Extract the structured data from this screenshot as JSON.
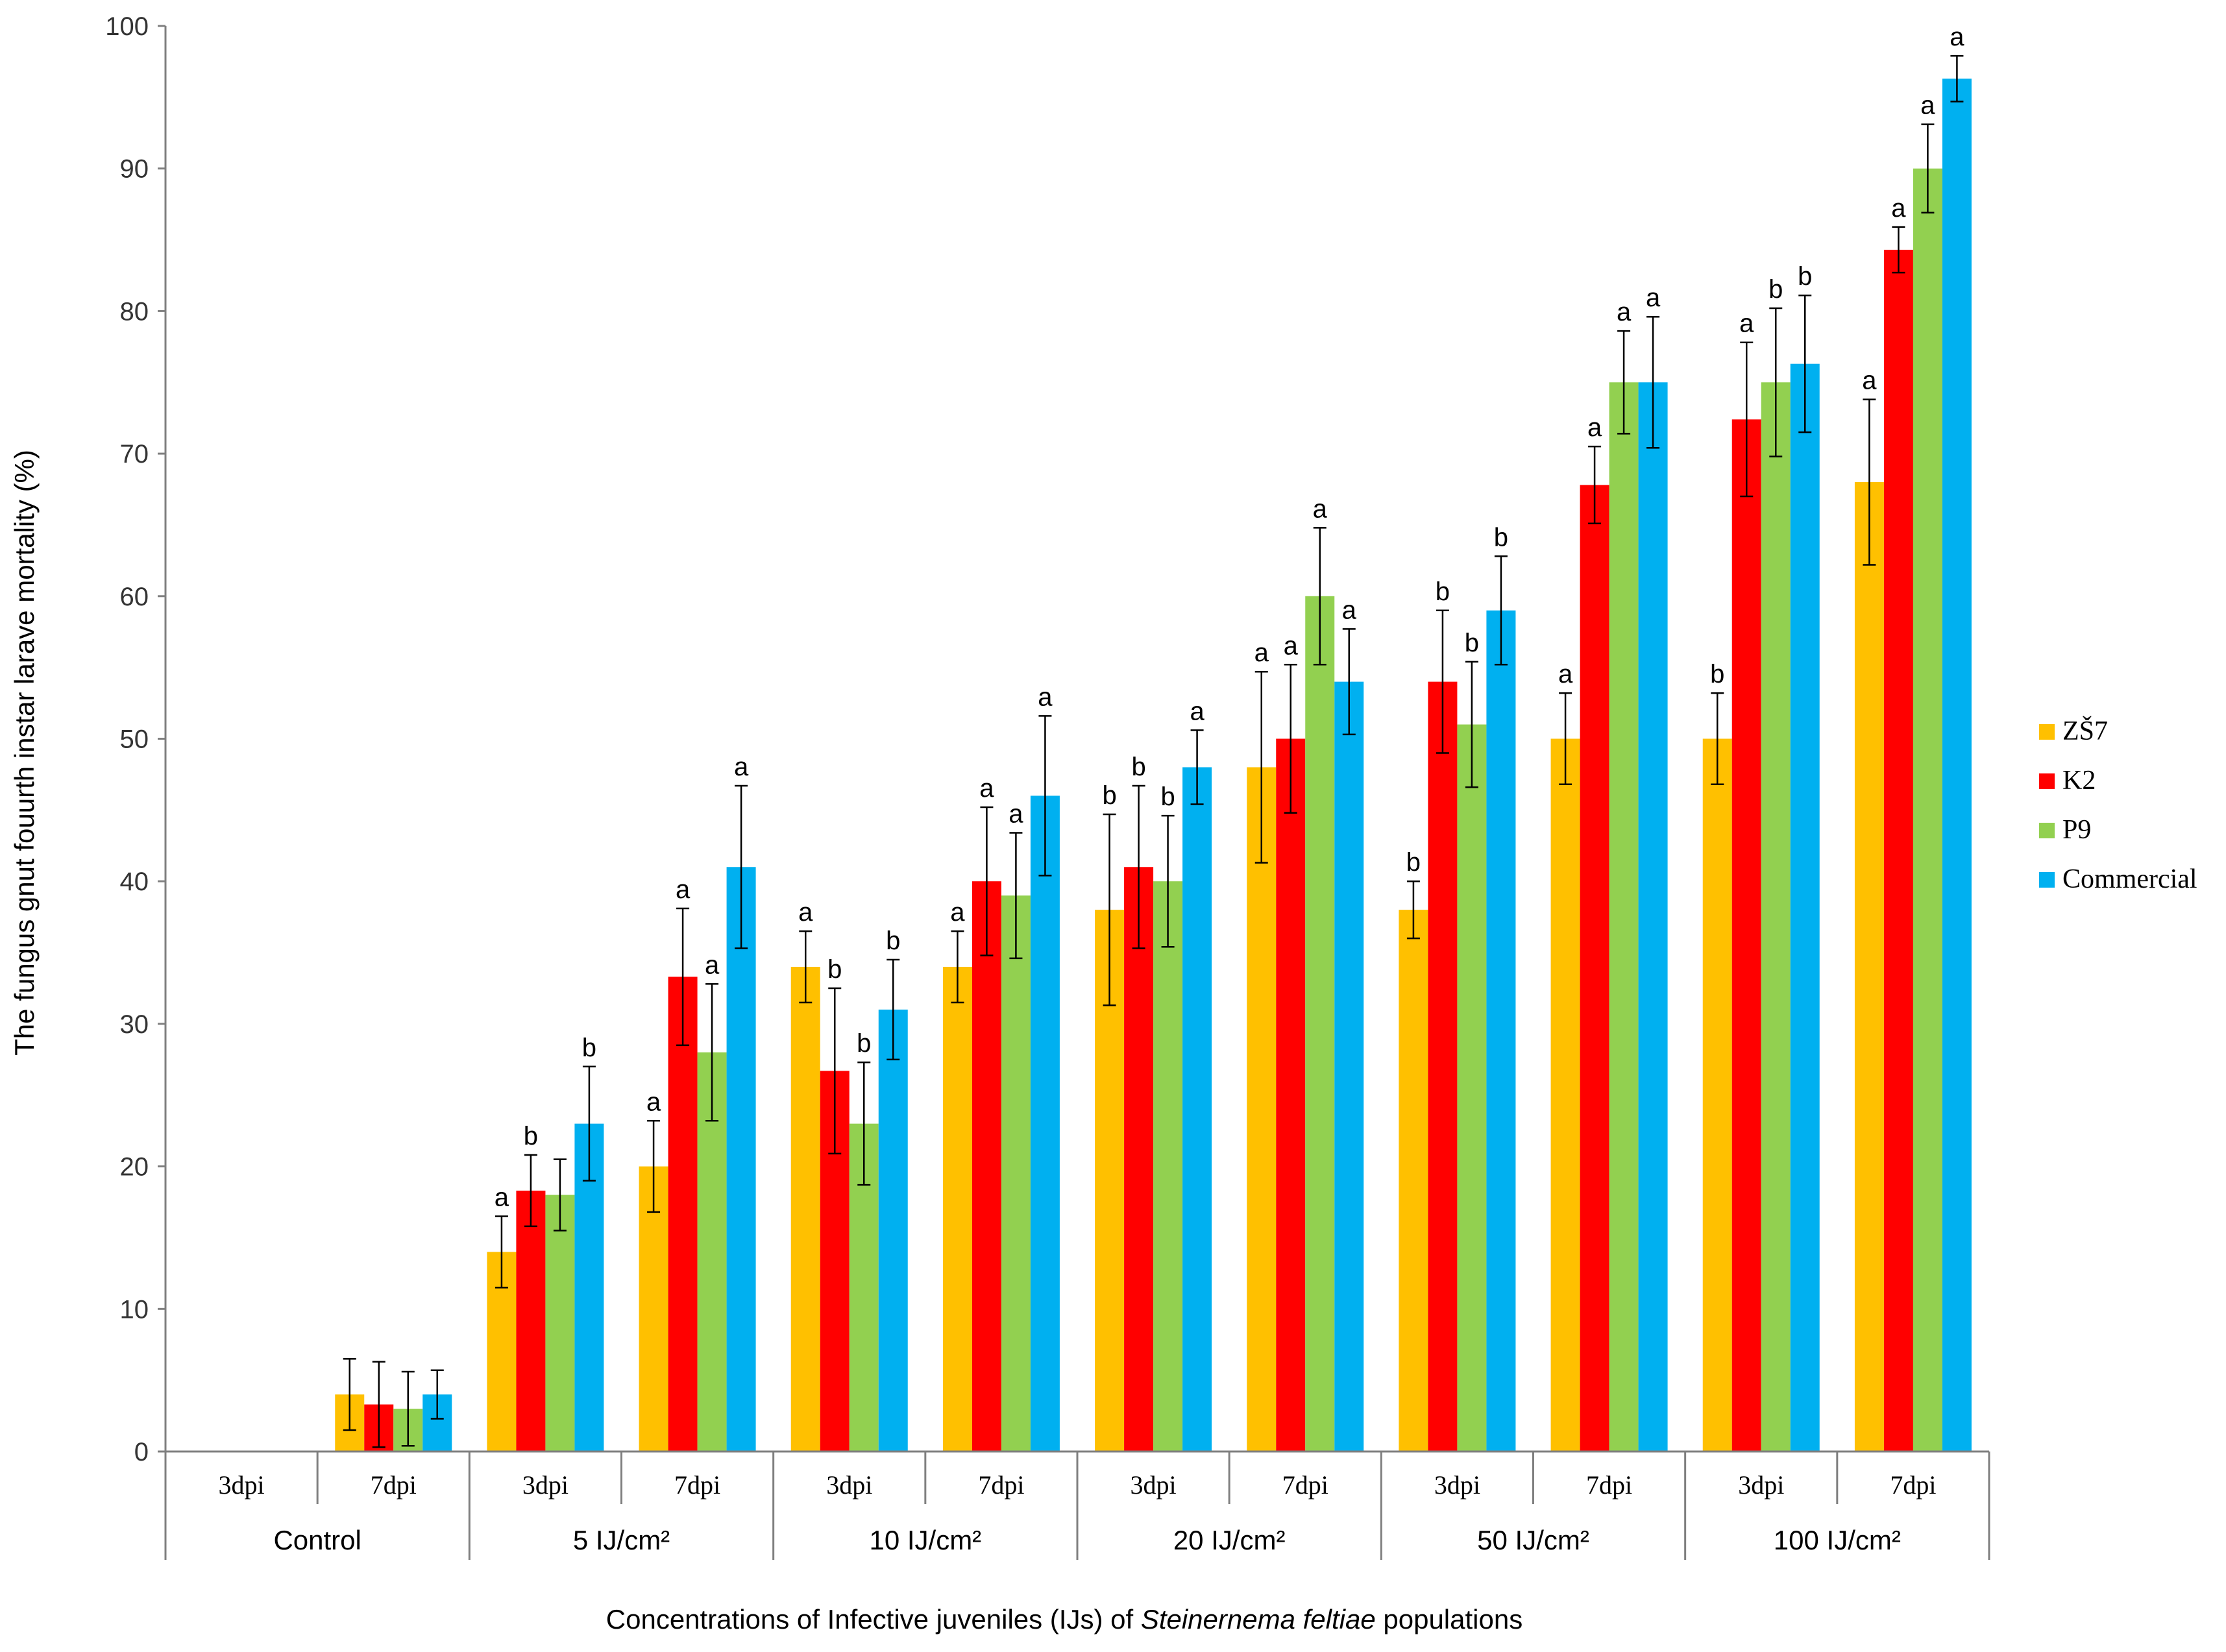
{
  "chart_data": {
    "type": "bar",
    "title": "",
    "ylabel": "The fungus gnut fouurth  instar larave mortality (%)",
    "xlabel_parts": [
      {
        "text": "Concentrations of Infective juveniles (IJs) of ",
        "italic": false
      },
      {
        "text": "Steinernema feltiae",
        "italic": true
      },
      {
        "text": " populations",
        "italic": false
      }
    ],
    "ylim": [
      0,
      100
    ],
    "yticks": [
      0,
      10,
      20,
      30,
      40,
      50,
      60,
      70,
      80,
      90,
      100
    ],
    "grid": false,
    "legend_position": "right",
    "groups": [
      {
        "label": "Control",
        "categories": [
          "3dpi",
          "7dpi"
        ]
      },
      {
        "label": "5 IJ/cm²",
        "categories": [
          "3dpi",
          "7dpi"
        ]
      },
      {
        "label": "10 IJ/cm²",
        "categories": [
          "3dpi",
          "7dpi"
        ]
      },
      {
        "label": "20 IJ/cm²",
        "categories": [
          "3dpi",
          "7dpi"
        ]
      },
      {
        "label": "50 IJ/cm²",
        "categories": [
          "3dpi",
          "7dpi"
        ]
      },
      {
        "label": "100 IJ/cm²",
        "categories": [
          "3dpi",
          "7dpi"
        ]
      }
    ],
    "categories": [
      "3dpi",
      "7dpi",
      "3dpi",
      "7dpi",
      "3dpi",
      "7dpi",
      "3dpi",
      "7dpi",
      "3dpi",
      "7dpi",
      "3dpi",
      "7dpi"
    ],
    "series": [
      {
        "name": "ZŠ7",
        "color": "#FFC000",
        "values": [
          0,
          4,
          14,
          20,
          34,
          34,
          38,
          48,
          38,
          50,
          50,
          68
        ],
        "errors": [
          0,
          2.5,
          2.5,
          3.2,
          2.5,
          2.5,
          6.7,
          6.7,
          2,
          3.2,
          3.2,
          5.8
        ],
        "letters": [
          "",
          "",
          "a",
          "a",
          "a",
          "a",
          "b",
          "a",
          "b",
          "a",
          "b",
          "a"
        ]
      },
      {
        "name": "K2",
        "color": "#FF0000",
        "values": [
          0,
          3.3,
          18.3,
          33.3,
          26.7,
          40,
          41,
          50,
          54,
          67.8,
          72.4,
          84.3
        ],
        "errors": [
          0,
          3,
          2.5,
          4.8,
          5.8,
          5.2,
          5.7,
          5.2,
          5,
          2.7,
          5.4,
          1.6
        ],
        "letters": [
          "",
          "",
          "b",
          "a",
          "b",
          "a",
          "b",
          "a",
          "b",
          "a",
          "a",
          "a"
        ]
      },
      {
        "name": "P9",
        "color": "#92D050",
        "values": [
          0,
          3,
          18,
          28,
          23,
          39,
          40,
          60,
          51,
          75,
          75,
          90
        ],
        "errors": [
          0,
          2.6,
          2.5,
          4.8,
          4.3,
          4.4,
          4.6,
          4.8,
          4.4,
          3.6,
          5.2,
          3.1
        ],
        "letters": [
          "",
          "",
          "",
          "a",
          "b",
          "a",
          "b",
          "a",
          "b",
          "a",
          "b",
          "a"
        ]
      },
      {
        "name": "Commercial",
        "color": "#00B0F0",
        "values": [
          0,
          4,
          23,
          41,
          31,
          46,
          48,
          54,
          59,
          75,
          76.3,
          96.3
        ],
        "errors": [
          0,
          1.7,
          4,
          5.7,
          3.5,
          5.6,
          2.6,
          3.7,
          3.8,
          4.6,
          4.8,
          1.6
        ],
        "letters": [
          "",
          "",
          "b",
          "a",
          "b",
          "a",
          "a",
          "a",
          "b",
          "a",
          "b",
          "a"
        ]
      }
    ]
  }
}
